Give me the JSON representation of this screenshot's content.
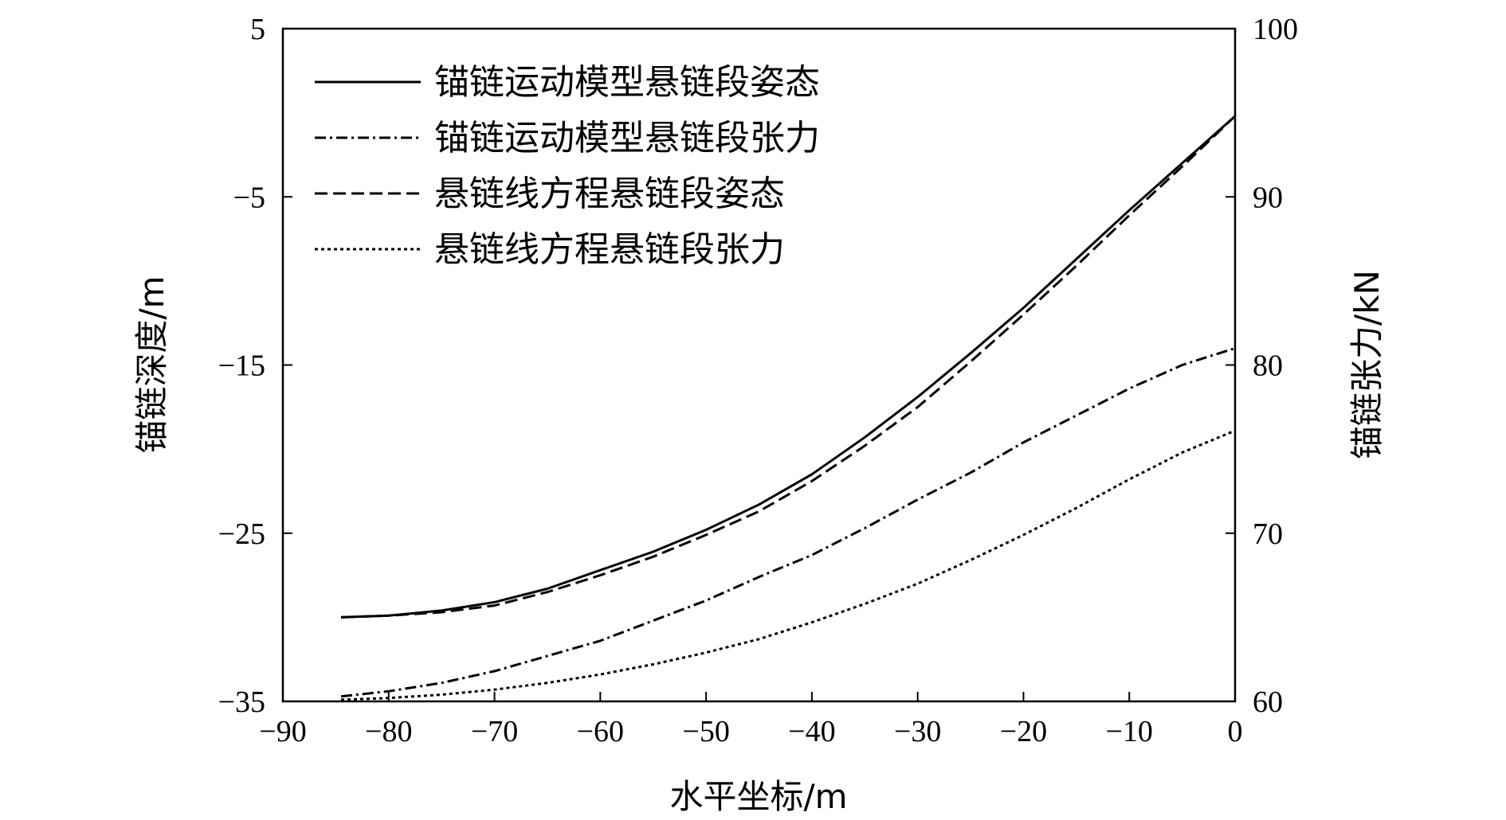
{
  "chart_data": {
    "type": "line",
    "xlabel": "水平坐标/m",
    "ylabel_left": "锚链深度/m",
    "ylabel_right": "锚链张力/kN",
    "xlim": [
      -90,
      0
    ],
    "ylim_left": [
      -35,
      5
    ],
    "ylim_right": [
      60,
      100
    ],
    "xticks": [
      -90,
      -80,
      -70,
      -60,
      -50,
      -40,
      -30,
      -20,
      -10,
      0
    ],
    "xtick_labels": [
      "−90",
      "−80",
      "−70",
      "−60",
      "−50",
      "−40",
      "−30",
      "−20",
      "−10",
      "0"
    ],
    "yticks_left": [
      5,
      -5,
      -15,
      -25,
      -35
    ],
    "ytick_labels_left": [
      "5",
      "−5",
      "−15",
      "−25",
      "−35"
    ],
    "yticks_right": [
      100,
      90,
      80,
      70,
      60
    ],
    "ytick_labels_right": [
      "100",
      "90",
      "80",
      "70",
      "60"
    ],
    "grid": false,
    "legend_position": "top-left",
    "series": [
      {
        "name": "锚链运动模型悬链段姿态",
        "axis": "left",
        "style": "solid",
        "x": [
          -84.5,
          -80,
          -75,
          -70,
          -65,
          -60,
          -55,
          -50,
          -45,
          -40,
          -35,
          -30,
          -25,
          -20,
          -15,
          -10,
          -5,
          0
        ],
        "y": [
          -30,
          -29.9,
          -29.6,
          -29.1,
          -28.3,
          -27.2,
          -26.1,
          -24.8,
          -23.3,
          -21.5,
          -19.3,
          -16.9,
          -14.3,
          -11.6,
          -8.7,
          -5.8,
          -3.0,
          -0.2
        ]
      },
      {
        "name": "锚链运动模型悬链段张力",
        "axis": "right",
        "style": "dashdot",
        "x": [
          -84.5,
          -80,
          -75,
          -70,
          -65,
          -60,
          -55,
          -50,
          -45,
          -40,
          -35,
          -30,
          -25,
          -20,
          -15,
          -10,
          -5,
          0
        ],
        "y": [
          60.3,
          60.6,
          61.1,
          61.8,
          62.7,
          63.6,
          64.8,
          66.0,
          67.4,
          68.7,
          70.3,
          72.0,
          73.6,
          75.4,
          77.0,
          78.6,
          80.0,
          81.0
        ]
      },
      {
        "name": "悬链线方程悬链段姿态",
        "axis": "left",
        "style": "dashed",
        "x": [
          -84.5,
          -80,
          -75,
          -70,
          -65,
          -60,
          -55,
          -50,
          -45,
          -40,
          -35,
          -30,
          -25,
          -20,
          -15,
          -10,
          -5,
          0
        ],
        "y": [
          -30,
          -29.9,
          -29.7,
          -29.3,
          -28.5,
          -27.5,
          -26.4,
          -25.1,
          -23.7,
          -21.9,
          -19.8,
          -17.5,
          -14.8,
          -12.0,
          -9.1,
          -6.1,
          -3.2,
          -0.2
        ]
      },
      {
        "name": "悬链线方程悬链段张力",
        "axis": "right",
        "style": "dotted",
        "x": [
          -84.5,
          -80,
          -75,
          -70,
          -65,
          -60,
          -55,
          -50,
          -45,
          -40,
          -35,
          -30,
          -25,
          -20,
          -15,
          -10,
          -5,
          0
        ],
        "y": [
          60.1,
          60.2,
          60.4,
          60.7,
          61.1,
          61.6,
          62.2,
          62.9,
          63.7,
          64.7,
          65.8,
          67.0,
          68.4,
          69.9,
          71.5,
          73.2,
          74.8,
          76.1
        ]
      }
    ]
  }
}
